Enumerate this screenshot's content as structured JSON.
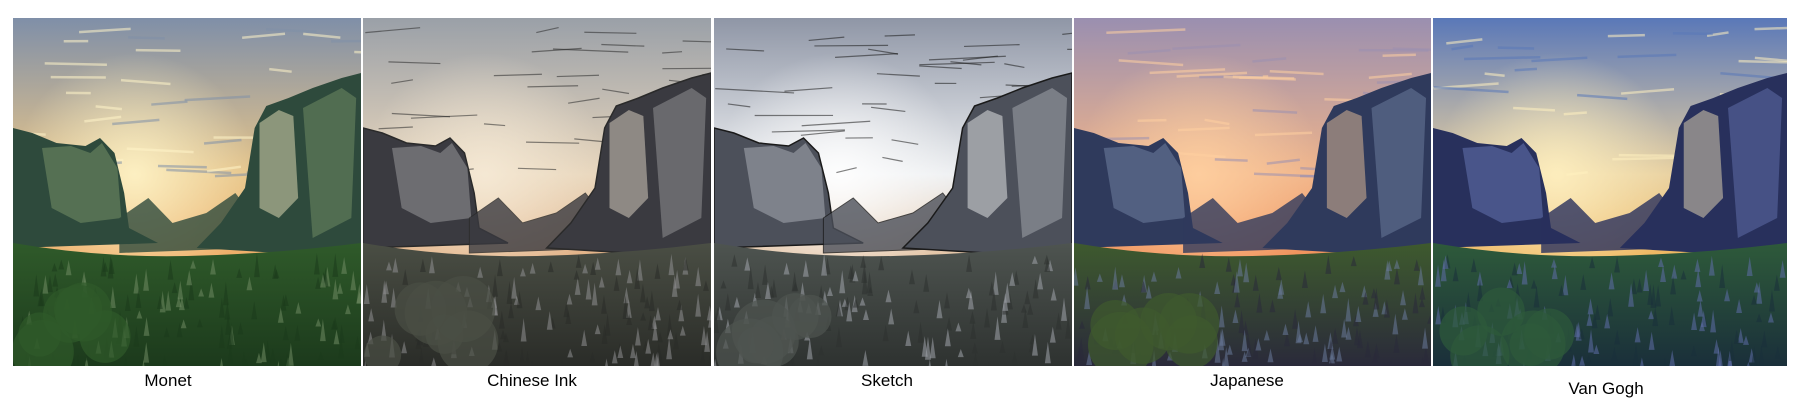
{
  "panels": [
    {
      "caption": "Monet",
      "colors": {
        "sky_top": "#7f8fa8",
        "sky_mid": "#e7c58a",
        "sky_low": "#f0a860",
        "rock_light": "#6f8a63",
        "rock_dark": "#2e4a3c",
        "forest": "#2f5a2a",
        "forest_dark": "#1c3a1c",
        "stroke": "none",
        "sun": "#fff4c8"
      }
    },
    {
      "caption": "Chinese Ink",
      "colors": {
        "sky_top": "#9aa0a8",
        "sky_mid": "#e8d6bc",
        "sky_low": "#e0a878",
        "rock_light": "#8f8f92",
        "rock_dark": "#3a3a40",
        "forest": "#4a4e44",
        "forest_dark": "#2a2c28",
        "stroke": "#2a2a2a",
        "sun": "#f6ead6"
      }
    },
    {
      "caption": "Sketch",
      "colors": {
        "sky_top": "#8f96a6",
        "sky_mid": "#eef0f2",
        "sky_low": "#e0b890",
        "rock_light": "#a0a4ac",
        "rock_dark": "#4c505a",
        "forest": "#4e5450",
        "forest_dark": "#2e3230",
        "stroke": "#1a1a1a",
        "sun": "#ffffff"
      }
    },
    {
      "caption": "Japanese",
      "colors": {
        "sky_top": "#9a8fb0",
        "sky_mid": "#f0b48a",
        "sky_low": "#f08a50",
        "rock_light": "#6a7a9a",
        "rock_dark": "#2f3a5c",
        "forest": "#3e5a2e",
        "forest_dark": "#2a2a3a",
        "stroke": "none",
        "sun": "#ffd0a0"
      }
    },
    {
      "caption": "Van Gogh",
      "colors": {
        "sky_top": "#5a78b8",
        "sky_mid": "#e8d0a0",
        "sky_low": "#f0b050",
        "rock_light": "#5f6ea8",
        "rock_dark": "#28305c",
        "forest": "#2e5a3a",
        "forest_dark": "#1a2f3a",
        "stroke": "none",
        "sun": "#fff0c0"
      }
    }
  ]
}
